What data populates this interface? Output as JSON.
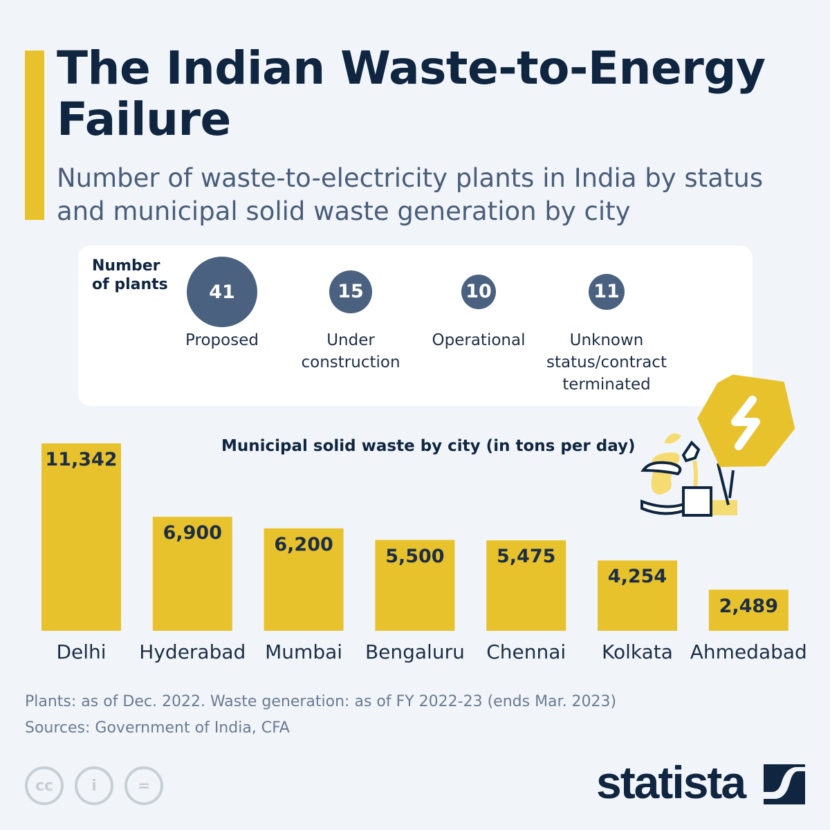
{
  "title": "The Indian Waste-to-Energy Failure",
  "subtitle": "Number of waste-to-electricity plants in India by status and municipal solid waste generation by city",
  "plants": {
    "label": "Number of plants",
    "items": [
      {
        "value": 41,
        "label": "Proposed"
      },
      {
        "value": 15,
        "label": "Under construction"
      },
      {
        "value": 10,
        "label": "Operational"
      },
      {
        "value": 11,
        "label": "Unknown status/contract terminated"
      }
    ]
  },
  "chart_data": {
    "type": "bar",
    "title": "Municipal solid waste by city (in tons per day)",
    "categories": [
      "Delhi",
      "Hyderabad",
      "Mumbai",
      "Bengaluru",
      "Chennai",
      "Kolkata",
      "Ahmedabad"
    ],
    "values": [
      11342,
      6900,
      6200,
      5500,
      5475,
      4254,
      2489
    ],
    "value_labels": [
      "11,342",
      "6,900",
      "6,200",
      "5,500",
      "5,475",
      "4,254",
      "2,489"
    ],
    "color": "#e8c22c"
  },
  "notes": {
    "line1": "Plants: as of Dec. 2022. Waste generation: as of FY 2022-23 (ends Mar. 2023)",
    "line2": "Sources: Government of India, CFA"
  },
  "license": {
    "cc": "cc",
    "by": "i",
    "nd": "="
  },
  "brand": "statista",
  "colors": {
    "navy": "#0f2540",
    "yellow": "#e8c22c",
    "bubble": "#4a6180"
  }
}
